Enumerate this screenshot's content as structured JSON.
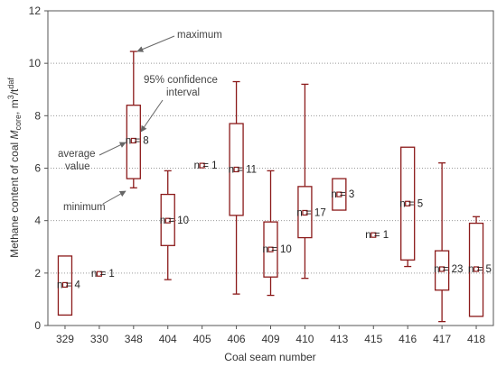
{
  "chart_data": {
    "type": "box",
    "xlabel": "Coal seam number",
    "ylabel_main": "Methane content of coal ",
    "ylabel_italic": "M",
    "ylabel_sub": "core",
    "ylabel_tail": ", m",
    "ylabel_sup_3": "3",
    "ylabel_after": "/t",
    "ylabel_sup_daf": "daf",
    "ylim": [
      0,
      12
    ],
    "yticks": [
      "0",
      "2",
      "4",
      "6",
      "8",
      "10",
      "12"
    ],
    "grid": "dotted",
    "box_color": "#8b1a1a",
    "categories": [
      "329",
      "330",
      "348",
      "404",
      "405",
      "406",
      "409",
      "410",
      "413",
      "415",
      "416",
      "417",
      "418"
    ],
    "boxes": [
      {
        "seam": "329",
        "mean": 1.55,
        "box_low": 0.4,
        "box_high": 2.65,
        "min": null,
        "max": null,
        "n_label": "n = 4"
      },
      {
        "seam": "330",
        "mean": 1.97,
        "box_low": null,
        "box_high": null,
        "min": null,
        "max": null,
        "n_label": "n = 1"
      },
      {
        "seam": "348",
        "mean": 7.05,
        "box_low": 5.6,
        "box_high": 8.4,
        "min": 5.25,
        "max": 10.45,
        "n_label": "n = 8"
      },
      {
        "seam": "404",
        "mean": 4.0,
        "box_low": 3.05,
        "box_high": 5.0,
        "min": 1.75,
        "max": 5.9,
        "n_label": "n = 10"
      },
      {
        "seam": "405",
        "mean": 6.1,
        "box_low": null,
        "box_high": null,
        "min": null,
        "max": null,
        "n_label": "n = 1"
      },
      {
        "seam": "406",
        "mean": 5.95,
        "box_low": 4.2,
        "box_high": 7.7,
        "min": 1.2,
        "max": 9.3,
        "n_label": "n = 11"
      },
      {
        "seam": "409",
        "mean": 2.9,
        "box_low": 1.85,
        "box_high": 3.95,
        "min": 1.15,
        "max": 5.9,
        "n_label": "n = 10"
      },
      {
        "seam": "410",
        "mean": 4.3,
        "box_low": 3.35,
        "box_high": 5.3,
        "min": 1.8,
        "max": 9.2,
        "n_label": "n = 17"
      },
      {
        "seam": "413",
        "mean": 5.0,
        "box_low": 4.4,
        "box_high": 5.6,
        "min": null,
        "max": null,
        "n_label": "n = 3"
      },
      {
        "seam": "415",
        "mean": 3.45,
        "box_low": null,
        "box_high": null,
        "min": null,
        "max": null,
        "n_label": "n = 1"
      },
      {
        "seam": "416",
        "mean": 4.65,
        "box_low": 2.5,
        "box_high": 6.8,
        "min": 2.25,
        "max": null,
        "n_label": "n = 5"
      },
      {
        "seam": "417",
        "mean": 2.15,
        "box_low": 1.35,
        "box_high": 2.85,
        "min": 0.15,
        "max": 6.2,
        "n_label": "n = 23"
      },
      {
        "seam": "418",
        "mean": 2.15,
        "box_low": 0.35,
        "box_high": 3.9,
        "min": null,
        "max": 4.15,
        "n_label": "n = 5"
      }
    ],
    "annotations": {
      "maximum": "maximum",
      "ci_line1": "95% confidence",
      "ci_line2": "interval",
      "avg_line1": "average",
      "avg_line2": "value",
      "minimum": "minimum"
    }
  }
}
